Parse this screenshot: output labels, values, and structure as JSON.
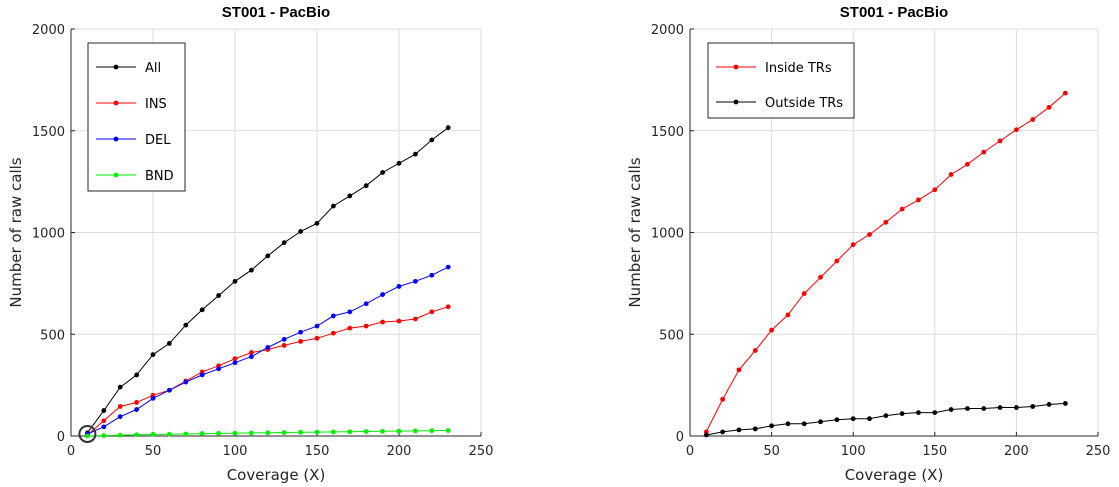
{
  "chart_data": [
    {
      "type": "line",
      "title": "ST001 - PacBio",
      "xlabel": "Coverage (X)",
      "ylabel": "Number of raw calls",
      "xlim": [
        0,
        250
      ],
      "ylim": [
        0,
        2000
      ],
      "xticks": [
        0,
        50,
        100,
        150,
        200,
        250
      ],
      "yticks": [
        0,
        500,
        1000,
        1500,
        2000
      ],
      "grid": true,
      "legend": "top-left",
      "x": [
        10,
        20,
        30,
        40,
        50,
        60,
        70,
        80,
        90,
        100,
        110,
        120,
        130,
        140,
        150,
        160,
        170,
        180,
        190,
        200,
        210,
        220,
        230
      ],
      "series": [
        {
          "name": "All",
          "color": "#000000",
          "values": [
            15,
            125,
            240,
            300,
            400,
            455,
            545,
            620,
            690,
            760,
            815,
            885,
            950,
            1005,
            1045,
            1130,
            1180,
            1230,
            1295,
            1340,
            1385,
            1455,
            1515
          ]
        },
        {
          "name": "INS",
          "color": "#ff0000",
          "values": [
            5,
            75,
            145,
            165,
            200,
            225,
            270,
            315,
            345,
            380,
            410,
            425,
            445,
            465,
            480,
            505,
            530,
            540,
            560,
            565,
            575,
            610,
            635
          ]
        },
        {
          "name": "DEL",
          "color": "#0000ff",
          "values": [
            10,
            45,
            95,
            130,
            185,
            225,
            265,
            300,
            330,
            360,
            390,
            435,
            475,
            510,
            540,
            590,
            610,
            650,
            695,
            735,
            760,
            790,
            830
          ]
        },
        {
          "name": "BND",
          "color": "#00ee00",
          "values": [
            0,
            2,
            4,
            6,
            8,
            9,
            10,
            12,
            13,
            14,
            15,
            16,
            17,
            18,
            19,
            20,
            21,
            22,
            23,
            24,
            25,
            26,
            27
          ]
        }
      ],
      "highlight_circle": {
        "x": 10,
        "y": 10
      }
    },
    {
      "type": "line",
      "title": "ST001 - PacBio",
      "xlabel": "Coverage (X)",
      "ylabel": "Number of raw calls",
      "xlim": [
        0,
        250
      ],
      "ylim": [
        0,
        2000
      ],
      "xticks": [
        0,
        50,
        100,
        150,
        200,
        250
      ],
      "yticks": [
        0,
        500,
        1000,
        1500,
        2000
      ],
      "grid": true,
      "legend": "top-left",
      "x": [
        10,
        20,
        30,
        40,
        50,
        60,
        70,
        80,
        90,
        100,
        110,
        120,
        130,
        140,
        150,
        160,
        170,
        180,
        190,
        200,
        210,
        220,
        230
      ],
      "series": [
        {
          "name": "Inside TRs",
          "color": "#ff0000",
          "values": [
            20,
            180,
            325,
            420,
            520,
            595,
            700,
            780,
            860,
            940,
            990,
            1050,
            1115,
            1160,
            1210,
            1285,
            1335,
            1395,
            1450,
            1505,
            1555,
            1615,
            1685
          ]
        },
        {
          "name": "Outside TRs",
          "color": "#000000",
          "values": [
            5,
            20,
            30,
            35,
            50,
            60,
            60,
            70,
            80,
            85,
            85,
            100,
            110,
            115,
            115,
            130,
            135,
            135,
            140,
            140,
            145,
            155,
            160
          ]
        }
      ]
    }
  ]
}
